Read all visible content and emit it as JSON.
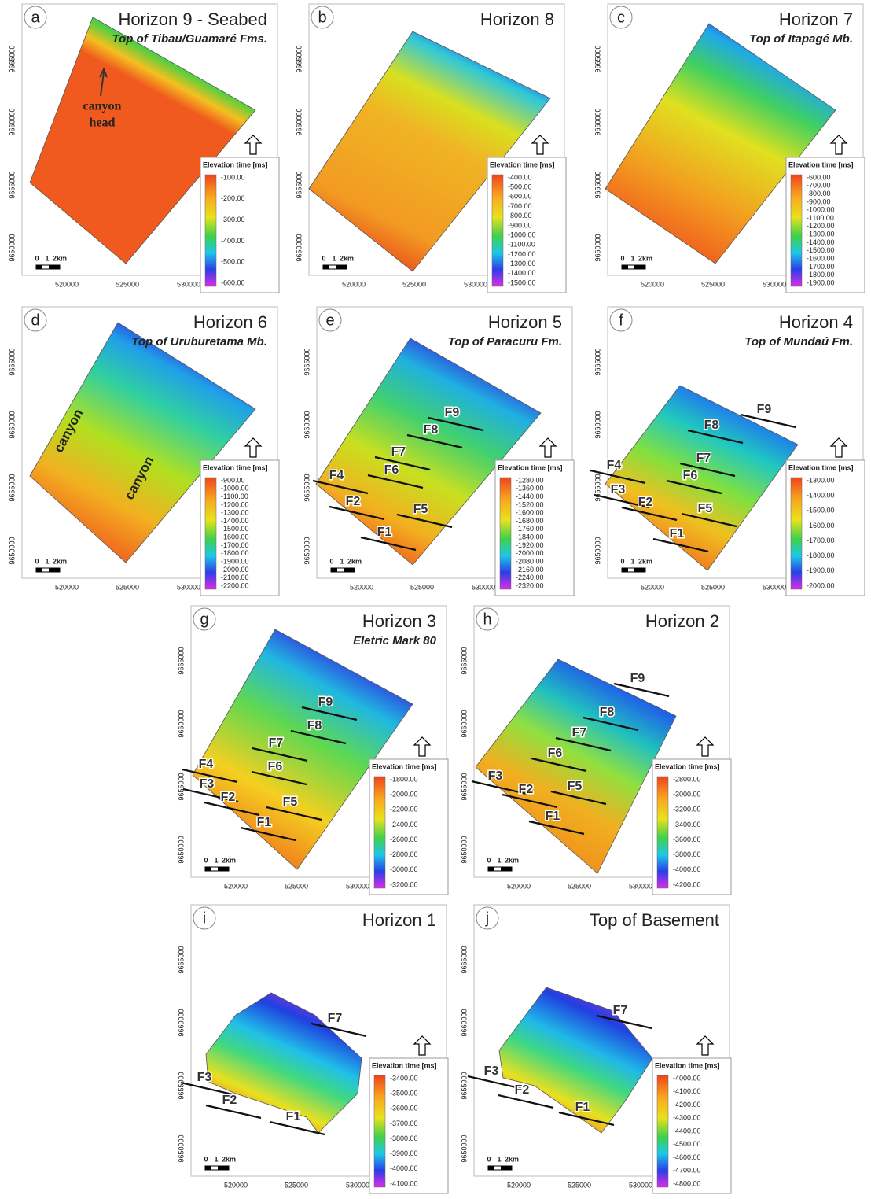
{
  "panels": [
    {
      "letter": "a",
      "title": "Horizon 9 - Seabed",
      "subtitle": "Top of Tibau/Guamaré Fms.",
      "annotations": [
        "canyon",
        "head"
      ],
      "yticks": [
        "9665000",
        "9660000",
        "9655000",
        "9650000"
      ],
      "xticks": [
        "520000",
        "525000",
        "530000"
      ],
      "scale": [
        "0",
        "1",
        "2km"
      ],
      "legend": {
        "title": "Elevation time [ms]",
        "labels": [
          "-100.00",
          "-200.00",
          "-300.00",
          "-400.00",
          "-500.00",
          "-600.00"
        ]
      }
    },
    {
      "letter": "b",
      "title": "Horizon 8",
      "yticks": [
        "9665000",
        "9660000",
        "9655000",
        "9650000"
      ],
      "xticks": [
        "520000",
        "525000",
        "530000"
      ],
      "scale": [
        "0",
        "1",
        "2km"
      ],
      "legend": {
        "title": "Elevation time [ms]",
        "labels": [
          "-400.00",
          "-500.00",
          "-600.00",
          "-700.00",
          "-800.00",
          "-900.00",
          "-1000.00",
          "-1100.00",
          "-1200.00",
          "-1300.00",
          "-1400.00",
          "-1500.00"
        ]
      }
    },
    {
      "letter": "c",
      "title": "Horizon 7",
      "subtitle": "Top of Itapagé Mb.",
      "yticks": [
        "9665000",
        "9660000",
        "9655000",
        "9650000"
      ],
      "xticks": [
        "520000",
        "525000",
        "530000"
      ],
      "scale": [
        "0",
        "1",
        "2km"
      ],
      "legend": {
        "title": "Elevation time [ms]",
        "labels": [
          "-600.00",
          "-700.00",
          "-800.00",
          "-900.00",
          "-1000.00",
          "-1100.00",
          "-1200.00",
          "-1300.00",
          "-1400.00",
          "-1500.00",
          "-1600.00",
          "-1700.00",
          "-1800.00",
          "-1900.00"
        ]
      }
    },
    {
      "letter": "d",
      "title": "Horizon 6",
      "subtitle": "Top of Uruburetama Mb.",
      "annotations": [
        "canyon",
        "canyon"
      ],
      "yticks": [
        "9665000",
        "9660000",
        "9655000",
        "9650000"
      ],
      "xticks": [
        "520000",
        "525000",
        "530000"
      ],
      "scale": [
        "0",
        "1",
        "2km"
      ],
      "legend": {
        "title": "Elevation time [ms]",
        "labels": [
          "-900.00",
          "-1000.00",
          "-1100.00",
          "-1200.00",
          "-1300.00",
          "-1400.00",
          "-1500.00",
          "-1600.00",
          "-1700.00",
          "-1800.00",
          "-1900.00",
          "-2000.00",
          "-2100.00",
          "-2200.00"
        ]
      }
    },
    {
      "letter": "e",
      "title": "Horizon 5",
      "subtitle": "Top of Paracuru Fm.",
      "faults": [
        "F9",
        "F8",
        "F7",
        "F6",
        "F4",
        "F2",
        "F5",
        "F1"
      ],
      "yticks": [
        "9665000",
        "9660000",
        "9655000",
        "9650000"
      ],
      "xticks": [
        "520000",
        "525000",
        "530000"
      ],
      "scale": [
        "0",
        "1",
        "2km"
      ],
      "legend": {
        "title": "Elevation time [ms]",
        "labels": [
          "-1280.00",
          "-1360.00",
          "-1440.00",
          "-1520.00",
          "-1600.00",
          "-1680.00",
          "-1760.00",
          "-1840.00",
          "-1920.00",
          "-2000.00",
          "-2080.00",
          "-2160.00",
          "-2240.00",
          "-2320.00"
        ]
      }
    },
    {
      "letter": "f",
      "title": "Horizon 4",
      "subtitle": "Top of Mundaú Fm.",
      "faults": [
        "F9",
        "F8",
        "F4",
        "F7",
        "F6",
        "F3",
        "F2",
        "F5",
        "F1"
      ],
      "yticks": [
        "9665000",
        "9660000",
        "9655000",
        "9650000"
      ],
      "xticks": [
        "520000",
        "525000",
        "530000"
      ],
      "scale": [
        "0",
        "1",
        "2km"
      ],
      "legend": {
        "title": "Elevation time [ms]",
        "labels": [
          "-1300.00",
          "-1400.00",
          "-1500.00",
          "-1600.00",
          "-1700.00",
          "-1800.00",
          "-1900.00",
          "-2000.00"
        ]
      }
    },
    {
      "letter": "g",
      "title": "Horizon 3",
      "subtitle": "Eletric Mark 80",
      "faults": [
        "F9",
        "F8",
        "F7",
        "F4",
        "F6",
        "F3",
        "F2",
        "F5",
        "F1"
      ],
      "yticks": [
        "9665000",
        "9660000",
        "9655000",
        "9650000"
      ],
      "xticks": [
        "520000",
        "525000",
        "530000"
      ],
      "scale": [
        "0",
        "1",
        "2km"
      ],
      "legend": {
        "title": "Elevation time [ms]",
        "labels": [
          "-1800.00",
          "-2000.00",
          "-2200.00",
          "-2400.00",
          "-2600.00",
          "-2800.00",
          "-3000.00",
          "-3200.00"
        ]
      }
    },
    {
      "letter": "h",
      "title": "Horizon 2",
      "faults": [
        "F9",
        "F8",
        "F7",
        "F6",
        "F3",
        "F2",
        "F5",
        "F1"
      ],
      "yticks": [
        "9665000",
        "9660000",
        "9655000",
        "9650000"
      ],
      "xticks": [
        "520000",
        "525000",
        "530000"
      ],
      "scale": [
        "0",
        "1",
        "2km"
      ],
      "legend": {
        "title": "Elevation time [ms]",
        "labels": [
          "-2800.00",
          "-3000.00",
          "-3200.00",
          "-3400.00",
          "-3600.00",
          "-3800.00",
          "-4000.00",
          "-4200.00"
        ]
      }
    },
    {
      "letter": "i",
      "title": "Horizon 1",
      "faults": [
        "F7",
        "F3",
        "F2",
        "F1"
      ],
      "yticks": [
        "9665000",
        "9660000",
        "9655000",
        "9650000"
      ],
      "xticks": [
        "520000",
        "525000",
        "530000"
      ],
      "scale": [
        "0",
        "1",
        "2km"
      ],
      "legend": {
        "title": "Elevation time [ms]",
        "labels": [
          "-3400.00",
          "-3500.00",
          "-3600.00",
          "-3700.00",
          "-3800.00",
          "-3900.00",
          "-4000.00",
          "-4100.00"
        ]
      }
    },
    {
      "letter": "j",
      "title": "Top of Basement",
      "faults": [
        "F7",
        "F3",
        "F2",
        "F1"
      ],
      "yticks": [
        "9665000",
        "9660000",
        "9655000",
        "9650000"
      ],
      "xticks": [
        "520000",
        "525000",
        "530000"
      ],
      "scale": [
        "0",
        "1",
        "2km"
      ],
      "legend": {
        "title": "Elevation time [ms]",
        "labels": [
          "-4000.00",
          "-4100.00",
          "-4200.00",
          "-4300.00",
          "-4400.00",
          "-4500.00",
          "-4600.00",
          "-4700.00",
          "-4800.00"
        ]
      }
    }
  ]
}
